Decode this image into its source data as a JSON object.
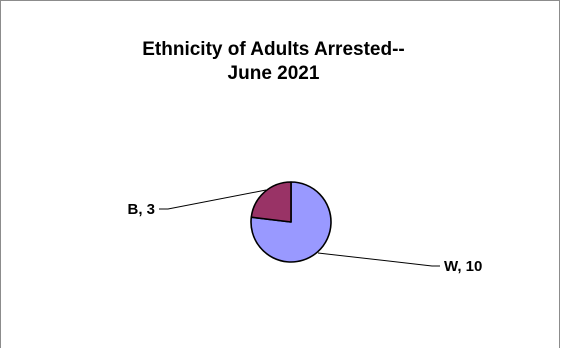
{
  "chart_data": {
    "type": "pie",
    "title_lines": [
      "Ethnicity of Adults Arrested--",
      "June 2021"
    ],
    "slices": [
      {
        "category": "W",
        "value": 10,
        "label": "W, 10",
        "color": "#9999ff"
      },
      {
        "category": "B",
        "value": 3,
        "label": "B, 3",
        "color": "#993366"
      }
    ],
    "legend": "none"
  }
}
